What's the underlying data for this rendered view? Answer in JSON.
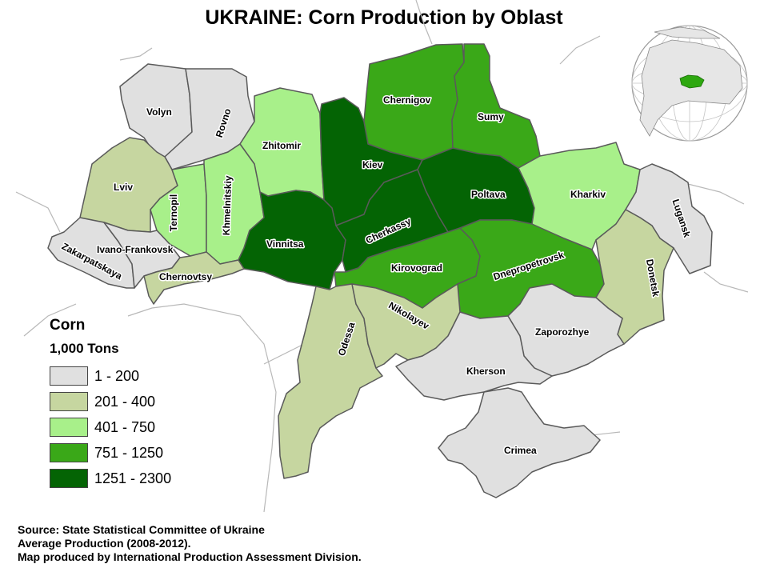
{
  "title": "UKRAINE: Corn Production by Oblast",
  "legend": {
    "title": "Corn",
    "unit": "1,000 Tons",
    "classes": [
      {
        "label": "1 - 200",
        "color": "#e0e0e0"
      },
      {
        "label": "201 - 400",
        "color": "#c6d6a0"
      },
      {
        "label": "401 - 750",
        "color": "#a8f08a"
      },
      {
        "label": "751 - 1250",
        "color": "#3aa818"
      },
      {
        "label": "1251 - 2300",
        "color": "#046404"
      }
    ]
  },
  "oblasts": [
    {
      "name": "Volyn",
      "class": 0
    },
    {
      "name": "Rovno",
      "class": 0
    },
    {
      "name": "Zhitomir",
      "class": 2
    },
    {
      "name": "Chernigov",
      "class": 3
    },
    {
      "name": "Sumy",
      "class": 3
    },
    {
      "name": "Lviv",
      "class": 1
    },
    {
      "name": "Ternopil",
      "class": 2
    },
    {
      "name": "Khmelnitskiy",
      "class": 2
    },
    {
      "name": "Kiev",
      "class": 4
    },
    {
      "name": "Poltava",
      "class": 4
    },
    {
      "name": "Kharkiv",
      "class": 2
    },
    {
      "name": "Lugansk",
      "class": 0
    },
    {
      "name": "Zakarpatskaya",
      "class": 0
    },
    {
      "name": "Ivano-Frankovsk",
      "class": 0
    },
    {
      "name": "Chernovtsy",
      "class": 1
    },
    {
      "name": "Vinnitsa",
      "class": 4
    },
    {
      "name": "Cherkassy",
      "class": 4
    },
    {
      "name": "Kirovograd",
      "class": 3
    },
    {
      "name": "Dnepropetrovsk",
      "class": 3
    },
    {
      "name": "Donetsk",
      "class": 1
    },
    {
      "name": "Odessa",
      "class": 1
    },
    {
      "name": "Nikolayev",
      "class": 1
    },
    {
      "name": "Zaporozhye",
      "class": 0
    },
    {
      "name": "Kherson",
      "class": 0
    },
    {
      "name": "Crimea",
      "class": 0
    }
  ],
  "source": {
    "line1": "Source: State Statistical Committee of Ukraine",
    "line2": "Average Production (2008-2012).",
    "line3": "Map produced by International Production Assessment Division."
  }
}
